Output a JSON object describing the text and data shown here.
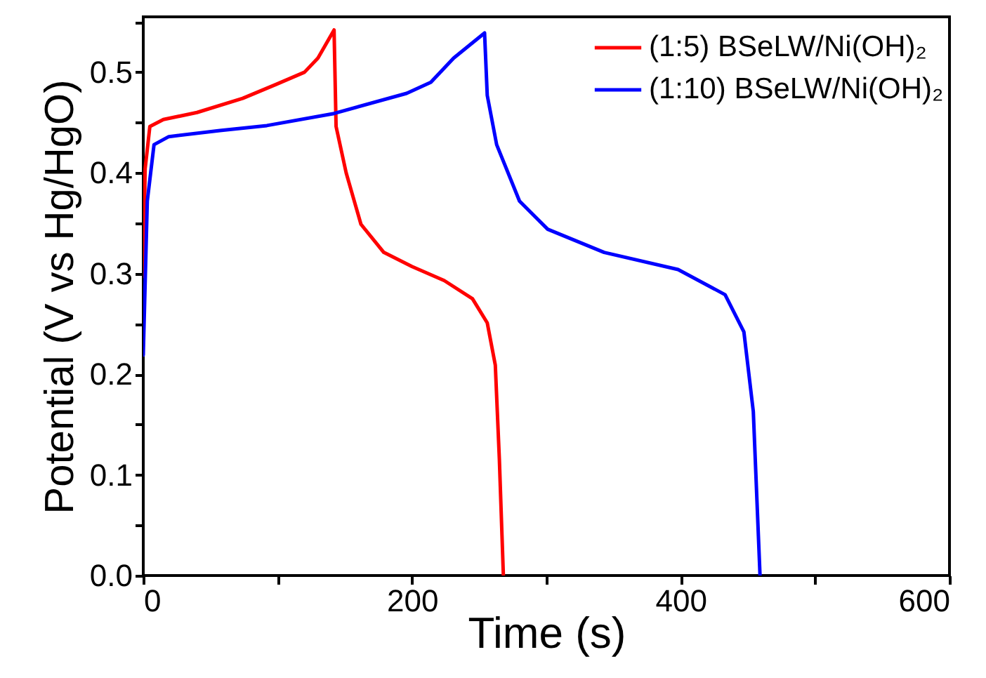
{
  "chart_data": {
    "type": "line",
    "xlabel": "Time (s)",
    "ylabel": "Potential (V vs Hg/HgO)",
    "xlim": [
      0,
      600
    ],
    "xticks": [
      0,
      {
        "value": 100,
        "label": null
      },
      200,
      {
        "value": 300,
        "label": null
      },
      400,
      {
        "value": 500,
        "label": null
      },
      600
    ],
    "ylim": [
      0,
      0.555
    ],
    "yticks": [
      {
        "value": 0,
        "label": "0.0"
      },
      {
        "value": 0.05,
        "label": null
      },
      0.1,
      {
        "value": 0.15,
        "label": null
      },
      0.2,
      {
        "value": 0.25,
        "label": null
      },
      0.3,
      {
        "value": 0.35,
        "label": null
      },
      0.4,
      {
        "value": 0.45,
        "label": null
      },
      0.5,
      {
        "value": 0.55,
        "label": null
      }
    ],
    "grid": false,
    "legend": "top right",
    "line_style": "solid",
    "marker": "none",
    "series": [
      {
        "name": "(1:5) BSeLW/Ni(OH)₂",
        "color": "#ff0000",
        "x": [
          0,
          1.4,
          4.9,
          15,
          40,
          74,
          99,
          120,
          130,
          142,
          143.5,
          151,
          162,
          179,
          200,
          224,
          245,
          256,
          262,
          265,
          268
        ],
        "values": [
          0.297,
          0.404,
          0.446,
          0.453,
          0.46,
          0.474,
          0.488,
          0.5,
          0.514,
          0.542,
          0.446,
          0.4,
          0.349,
          0.321,
          0.307,
          0.293,
          0.275,
          0.251,
          0.209,
          0.116,
          0
        ]
      },
      {
        "name": "(1:10) BSeLW/Ni(OH)₂",
        "color": "#0000ff",
        "x": [
          0,
          3,
          8,
          19,
          57,
          92,
          142,
          196,
          214,
          231,
          254,
          256,
          263,
          280,
          301,
          343,
          398,
          433,
          447,
          454,
          459
        ],
        "values": [
          0.219,
          0.372,
          0.428,
          0.436,
          0.442,
          0.447,
          0.459,
          0.479,
          0.49,
          0.514,
          0.539,
          0.477,
          0.428,
          0.372,
          0.344,
          0.321,
          0.304,
          0.279,
          0.242,
          0.163,
          0
        ]
      }
    ]
  }
}
